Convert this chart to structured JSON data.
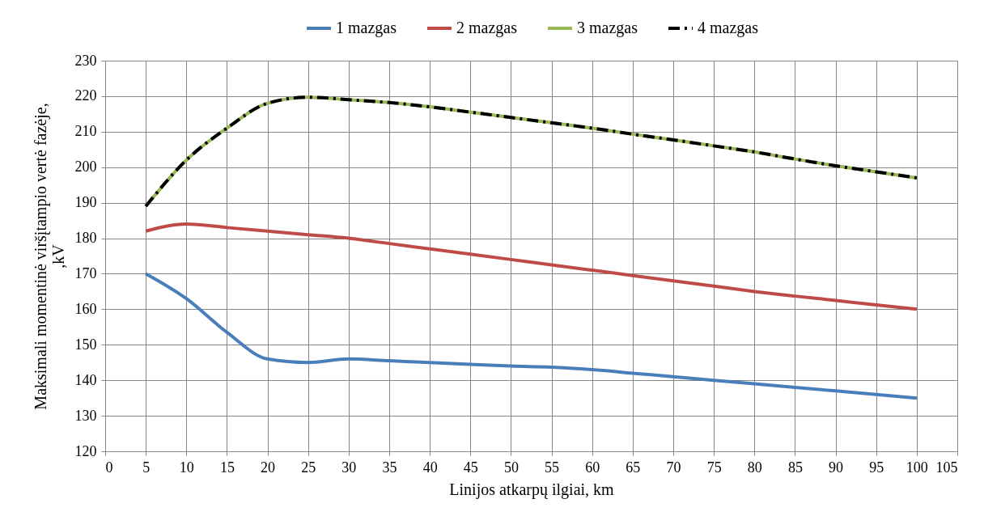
{
  "chart_data": {
    "type": "line",
    "xlabel": "Linijos atkarpų ilgiai, km",
    "ylabel": "Maksimali  momentinė viršįtampio vertė fazėje,\n,kV",
    "x": [
      5,
      10,
      15,
      20,
      25,
      30,
      35,
      40,
      45,
      50,
      55,
      60,
      65,
      70,
      75,
      80,
      85,
      90,
      95,
      100
    ],
    "series": [
      {
        "name": "1 mazgas",
        "color": "#4a7ebb",
        "values": [
          170,
          163,
          153.5,
          146,
          145,
          146,
          145.5,
          145,
          144.5,
          144,
          143.7,
          143,
          142,
          141,
          140,
          139,
          138,
          137,
          136,
          135
        ]
      },
      {
        "name": "2 mazgas",
        "color": "#be4b48",
        "values": [
          182,
          184,
          183,
          182,
          181,
          180,
          178.5,
          177,
          175.5,
          174,
          172.5,
          171,
          169.5,
          168,
          166.5,
          165,
          163.7,
          162.5,
          161.2,
          160
        ]
      },
      {
        "name": "3 mazgas",
        "color": "#98b954",
        "values": [
          189,
          202,
          211,
          218,
          219.7,
          219,
          218.2,
          217,
          215.5,
          214,
          212.5,
          211,
          209.3,
          207.7,
          206,
          204.3,
          202.3,
          200.4,
          198.7,
          197
        ]
      },
      {
        "name": "4 mazgas",
        "color": "#000000",
        "line_style": "dashed",
        "values": [
          189,
          202,
          211,
          218,
          219.7,
          219,
          218.2,
          217,
          215.5,
          214,
          212.5,
          211,
          209.3,
          207.7,
          206,
          204.3,
          202.3,
          200.4,
          198.7,
          197
        ]
      }
    ],
    "xlim": [
      0,
      105
    ],
    "xticks": [
      0,
      5,
      10,
      15,
      20,
      25,
      30,
      35,
      40,
      45,
      50,
      55,
      60,
      65,
      70,
      75,
      80,
      85,
      90,
      95,
      100,
      105
    ],
    "ylim": [
      120,
      230
    ],
    "yticks": [
      120,
      130,
      140,
      150,
      160,
      170,
      180,
      190,
      200,
      210,
      220,
      230
    ],
    "grid": true,
    "legend": "top",
    "marker": "none"
  }
}
